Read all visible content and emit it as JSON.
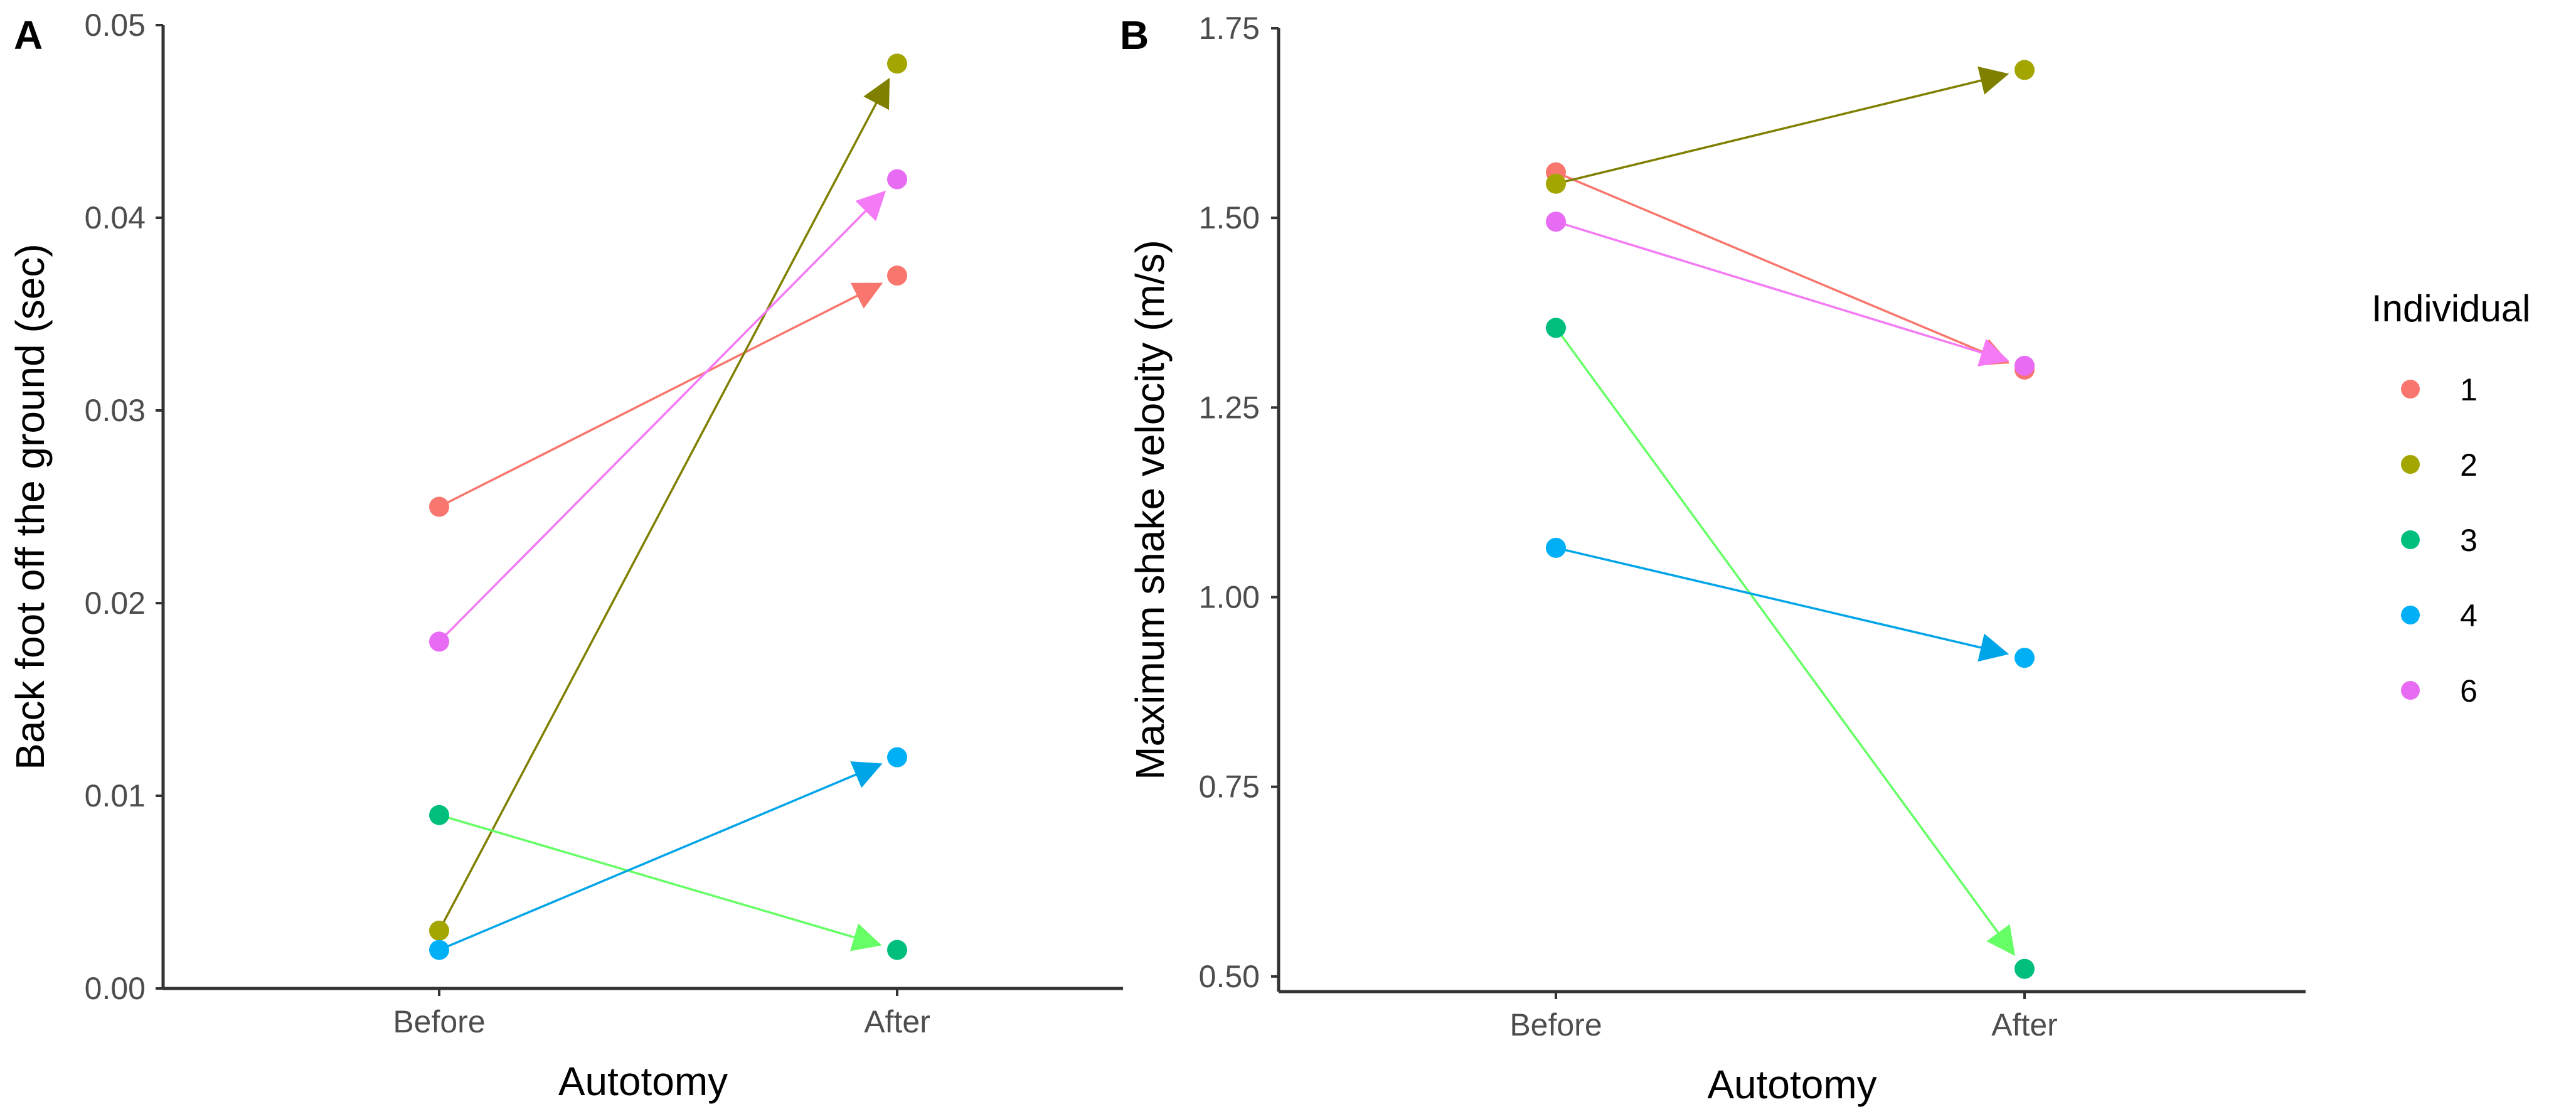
{
  "chart_data": [
    {
      "type": "scatter",
      "panel_label": "A",
      "title": "",
      "xlabel": "Autotomy",
      "ylabel": "Back foot off the ground (sec)",
      "categories": [
        "Before",
        "After"
      ],
      "ylim": [
        0,
        0.05
      ],
      "yticks": [
        0.0,
        0.01,
        0.02,
        0.03,
        0.04,
        0.05
      ],
      "ytick_labels": [
        "0.00",
        "0.01",
        "0.02",
        "0.03",
        "0.04",
        "0.05"
      ],
      "grid": false,
      "series": [
        {
          "name": "1",
          "values": [
            0.025,
            0.037
          ]
        },
        {
          "name": "2",
          "values": [
            0.003,
            0.048
          ]
        },
        {
          "name": "3",
          "values": [
            0.009,
            0.002
          ]
        },
        {
          "name": "4",
          "values": [
            0.002,
            0.012
          ]
        },
        {
          "name": "6",
          "values": [
            0.018,
            0.042
          ]
        }
      ],
      "arrows": "from Before to After for each individual"
    },
    {
      "type": "scatter",
      "panel_label": "B",
      "title": "",
      "xlabel": "Autotomy",
      "ylabel": "Maximum shake velocity (m/s)",
      "categories": [
        "Before",
        "After"
      ],
      "ylim": [
        0.48,
        1.75
      ],
      "yticks": [
        0.5,
        0.75,
        1.0,
        1.25,
        1.5,
        1.75
      ],
      "ytick_labels": [
        "0.50",
        "0.75",
        "1.00",
        "1.25",
        "1.50",
        "1.75"
      ],
      "grid": false,
      "series": [
        {
          "name": "1",
          "values": [
            1.56,
            1.3
          ]
        },
        {
          "name": "2",
          "values": [
            1.545,
            1.695
          ]
        },
        {
          "name": "3",
          "values": [
            1.355,
            0.51
          ]
        },
        {
          "name": "4",
          "values": [
            1.065,
            0.92
          ]
        },
        {
          "name": "6",
          "values": [
            1.495,
            1.305
          ]
        }
      ],
      "arrows": "from Before to After for each individual"
    }
  ],
  "legend": {
    "title": "Individual",
    "placement": "right",
    "entries": [
      "1",
      "2",
      "3",
      "4",
      "6"
    ]
  },
  "colors": {
    "1": {
      "point": "#F8766D",
      "arrow": "#F8766D"
    },
    "2": {
      "point": "#A3A500",
      "arrow": "#808000"
    },
    "3": {
      "point": "#00BF7D",
      "arrow": "#66FF66"
    },
    "4": {
      "point": "#00B0F6",
      "arrow": "#00A5E8"
    },
    "6": {
      "point": "#E76BF3",
      "arrow": "#F47AF6"
    },
    "axis": "#333333",
    "tick_text": "#4d4d4d"
  }
}
